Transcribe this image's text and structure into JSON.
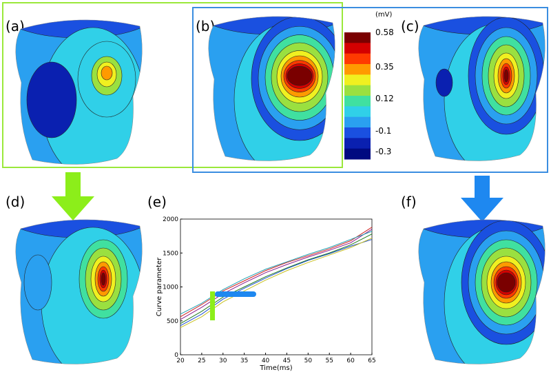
{
  "panels": {
    "labels": [
      "(a)",
      "(b)",
      "(c)",
      "(d)",
      "(e)",
      "(f)"
    ]
  },
  "colorbar": {
    "unit": "(mV)",
    "ticks": [
      0.58,
      0.35,
      0.12,
      -0.1,
      -0.3
    ],
    "colors": [
      "#7a0000",
      "#d40000",
      "#ff3a00",
      "#ff9a00",
      "#f0f020",
      "#9ae040",
      "#40e0a0",
      "#30d0e8",
      "#2aa0f0",
      "#1a50e0",
      "#0a20b0",
      "#000a80"
    ]
  },
  "chart_data": {
    "type": "line",
    "xlabel": "Time(ms)",
    "ylabel": "Curve parameter",
    "x": [
      20,
      25,
      30,
      35,
      40,
      45,
      50,
      55,
      60,
      65
    ],
    "xlim": [
      20,
      65
    ],
    "ylim": [
      0,
      2000
    ],
    "xticks": [
      20,
      25,
      30,
      35,
      40,
      45,
      50,
      55,
      60,
      65
    ],
    "yticks": [
      0,
      500,
      1000,
      1500,
      2000
    ],
    "series": [
      {
        "color": "#8b1a8b",
        "values": [
          520,
          700,
          900,
          1060,
          1210,
          1330,
          1440,
          1540,
          1650,
          1850
        ]
      },
      {
        "color": "#1e7a1e",
        "values": [
          460,
          640,
          850,
          1000,
          1150,
          1280,
          1400,
          1500,
          1620,
          1780
        ]
      },
      {
        "color": "#1f4fd0",
        "values": [
          430,
          600,
          820,
          980,
          1130,
          1270,
          1390,
          1490,
          1600,
          1700
        ]
      },
      {
        "color": "#d02020",
        "values": [
          560,
          740,
          940,
          1090,
          1240,
          1360,
          1460,
          1560,
          1680,
          1880
        ]
      },
      {
        "color": "#c8c020",
        "values": [
          400,
          560,
          780,
          940,
          1100,
          1240,
          1360,
          1470,
          1580,
          1720
        ]
      },
      {
        "color": "#20a0b0",
        "values": [
          600,
          760,
          960,
          1120,
          1260,
          1370,
          1480,
          1580,
          1700,
          1820
        ]
      }
    ]
  }
}
